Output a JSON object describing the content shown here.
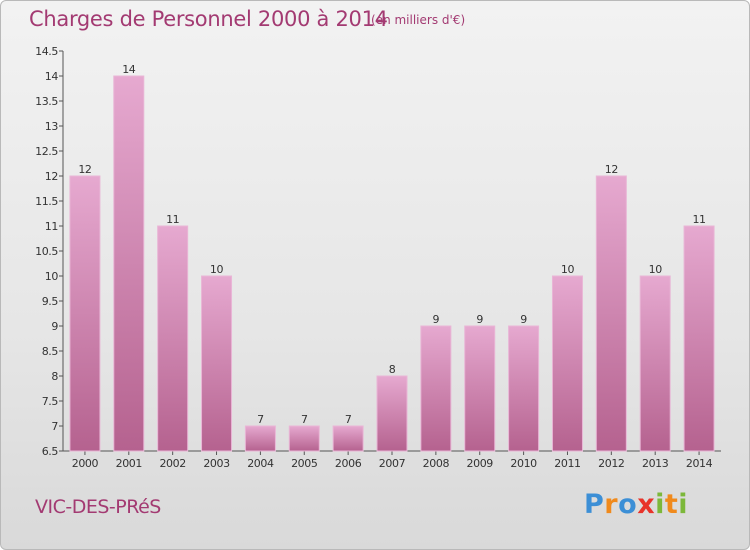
{
  "title": "Charges de Personnel 2000 à 2014",
  "unit_note": "(en milliers d'€)",
  "commune": "VIC-DES-PRéS",
  "logo": {
    "letters": [
      "P",
      "r",
      "o",
      "x",
      "i",
      "t",
      "i"
    ],
    "colors": [
      "#3c8fd6",
      "#f08a1c",
      "#3c8fd6",
      "#e8332a",
      "#7cb83a",
      "#f08a1c",
      "#7cb83a"
    ]
  },
  "colors": {
    "bar_top": "#e6a9d0",
    "bar_bottom": "#b5628f",
    "accent": "#a33a72"
  },
  "chart_data": {
    "type": "bar",
    "categories": [
      "2000",
      "2001",
      "2002",
      "2003",
      "2004",
      "2005",
      "2006",
      "2007",
      "2008",
      "2009",
      "2010",
      "2011",
      "2012",
      "2013",
      "2014"
    ],
    "values": [
      12,
      14,
      11,
      10,
      7,
      7,
      7,
      8,
      9,
      9,
      9,
      10,
      12,
      10,
      11
    ],
    "value_labels": [
      "12",
      "14",
      "11",
      "10",
      "7",
      "7",
      "7",
      "8",
      "9",
      "9",
      "9",
      "10",
      "12",
      "10",
      "11"
    ],
    "ylim": [
      6.5,
      14.5
    ],
    "yticks": [
      6.5,
      7,
      7.5,
      8,
      8.5,
      9,
      9.5,
      10,
      10.5,
      11,
      11.5,
      12,
      12.5,
      13,
      13.5,
      14,
      14.5
    ],
    "ytick_labels": [
      "6.5",
      "7",
      "7.5",
      "8",
      "8.5",
      "9",
      "9.5",
      "10",
      "10.5",
      "11",
      "11.5",
      "12",
      "12.5",
      "13",
      "13.5",
      "14",
      "14.5"
    ],
    "grid": false,
    "xlabel": "",
    "ylabel": ""
  }
}
